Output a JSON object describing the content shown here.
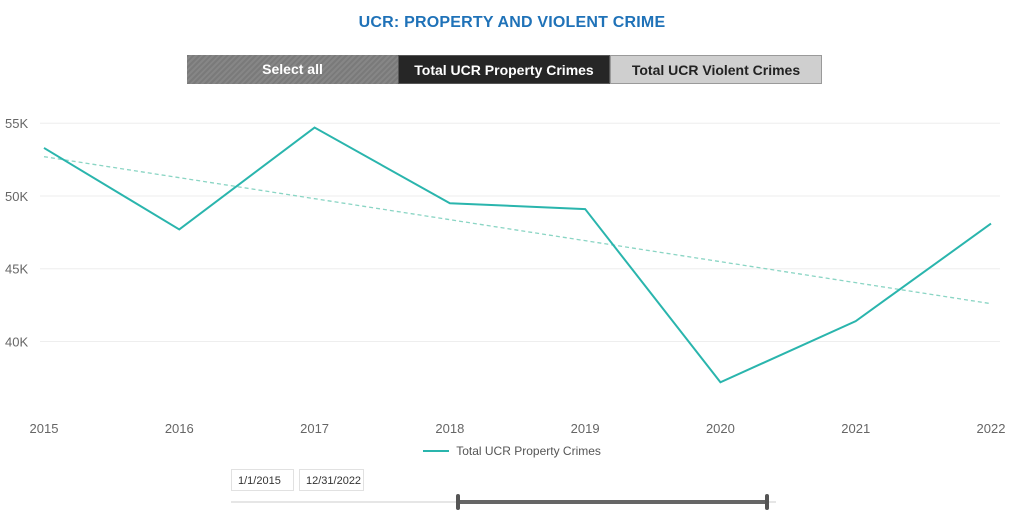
{
  "title": "UCR: PROPERTY AND VIOLENT CRIME",
  "slicer": {
    "select_all": "Select all",
    "property": "Total UCR Property Crimes",
    "violent": "Total UCR Violent Crimes",
    "selected": "property"
  },
  "legend": {
    "label": "Total UCR Property Crimes"
  },
  "date_range": {
    "start": "1/1/2015",
    "end": "12/31/2022"
  },
  "colors": {
    "line": "#2ab5ad",
    "trend": "#8ad5c4",
    "title": "#1f72b8"
  },
  "chart_data": {
    "type": "line",
    "title": "UCR: PROPERTY AND VIOLENT CRIME",
    "x": [
      "2015",
      "2016",
      "2017",
      "2018",
      "2019",
      "2020",
      "2021",
      "2022"
    ],
    "series": [
      {
        "name": "Total UCR Property Crimes",
        "values": [
          53300,
          47700,
          54700,
          49500,
          49100,
          37200,
          41400,
          48100
        ]
      }
    ],
    "trendline": {
      "start": 52700,
      "end": 42600,
      "style": "dashed"
    },
    "yticks": [
      40000,
      45000,
      50000,
      55000
    ],
    "ytick_labels": [
      "40K",
      "45K",
      "50K",
      "55K"
    ],
    "ylim": [
      35500,
      56800
    ],
    "xlabel": "",
    "ylabel": "",
    "legend": "bottom-center",
    "grid": true
  }
}
